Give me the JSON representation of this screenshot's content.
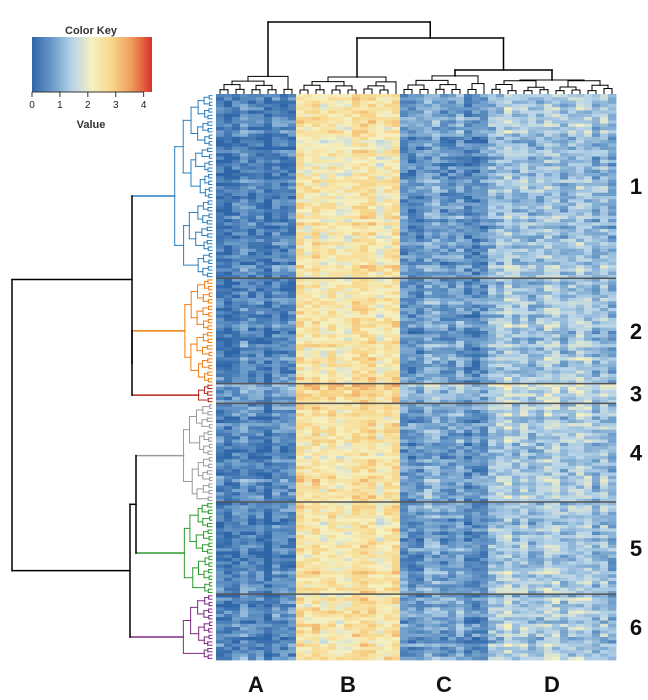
{
  "chart_data": {
    "type": "heatmap",
    "color_key": {
      "title": "Color Key",
      "xlabel": "Value",
      "ticks": [
        0,
        1,
        2,
        3,
        4
      ],
      "range": [
        0,
        4.3
      ],
      "colors": [
        "#2f66a8",
        "#6a9ac8",
        "#b7d4e8",
        "#f6f1c0",
        "#f7d58a",
        "#ef9a5a",
        "#d7312b"
      ]
    },
    "column_groups": [
      {
        "label": "A",
        "n_columns": 10,
        "mean_value": 0.3
      },
      {
        "label": "B",
        "n_columns": 13,
        "mean_value": 2.4
      },
      {
        "label": "C",
        "n_columns": 11,
        "mean_value": 0.7
      },
      {
        "label": "D",
        "n_columns": 16,
        "mean_value": 1.2
      }
    ],
    "row_clusters": [
      {
        "label": "1",
        "n_rows": 56,
        "color": "#2a7fc1"
      },
      {
        "label": "2",
        "n_rows": 32,
        "color": "#f07f13"
      },
      {
        "label": "3",
        "n_rows": 6,
        "color": "#b5271f"
      },
      {
        "label": "4",
        "n_rows": 30,
        "color": "#9b9b9b"
      },
      {
        "label": "5",
        "n_rows": 28,
        "color": "#2e9a2e"
      },
      {
        "label": "6",
        "n_rows": 20,
        "color": "#7e2c82"
      }
    ],
    "grid": false
  }
}
